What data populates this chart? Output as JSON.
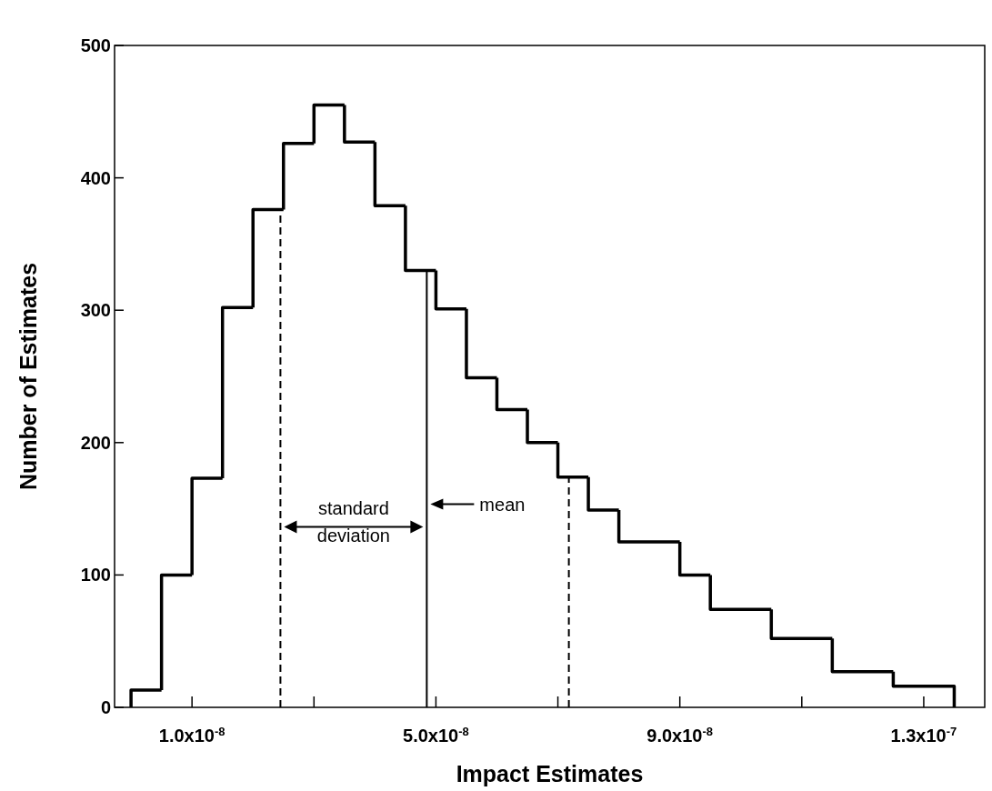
{
  "chart_data": {
    "type": "histogram",
    "xlabel": "Impact Estimates",
    "ylabel": "Number of Estimates",
    "bins": [
      0,
      5e-09,
      1e-08,
      1.5e-08,
      2e-08,
      2.5e-08,
      3e-08,
      3.5e-08,
      4e-08,
      4.5e-08,
      5e-08,
      5.5e-08,
      6e-08,
      6.5e-08,
      7e-08,
      7.5e-08,
      8e-08,
      9e-08,
      9.5e-08,
      1.05e-07,
      1.15e-07,
      1.25e-07,
      1.35e-07
    ],
    "values": [
      13,
      100,
      173,
      302,
      376,
      426,
      455,
      427,
      379,
      330,
      301,
      249,
      225,
      200,
      174,
      149,
      125,
      100,
      74,
      52,
      27,
      16
    ],
    "color": "#000000",
    "xlim": [
      -2.7e-09,
      1.4e-07
    ],
    "xticks": [
      {
        "value": 1e-08,
        "label": "1.0x10$^{-8}$"
      },
      {
        "value": 3e-08,
        "label": null
      },
      {
        "value": 5e-08,
        "label": "5.0x10$^{-8}$"
      },
      {
        "value": 7e-08,
        "label": null
      },
      {
        "value": 9e-08,
        "label": "9.0x10$^{-8}$"
      },
      {
        "value": 1.1e-07,
        "label": null
      },
      {
        "value": 1.3e-07,
        "label": "1.3x10$^{-7}$"
      }
    ],
    "ylim": [
      0,
      500
    ],
    "yticks": [
      0,
      100,
      200,
      300,
      400,
      500
    ],
    "grid": false,
    "ref_lines": [
      {
        "axis": "x",
        "value": 2.45e-08,
        "label": null,
        "line_style": "dashed"
      },
      {
        "axis": "x",
        "value": 4.85e-08,
        "label": "mean",
        "line_style": "solid"
      },
      {
        "axis": "x",
        "value": 7.18e-08,
        "label": null,
        "line_style": "dashed"
      }
    ],
    "annotations": [
      "standard deviation"
    ]
  }
}
